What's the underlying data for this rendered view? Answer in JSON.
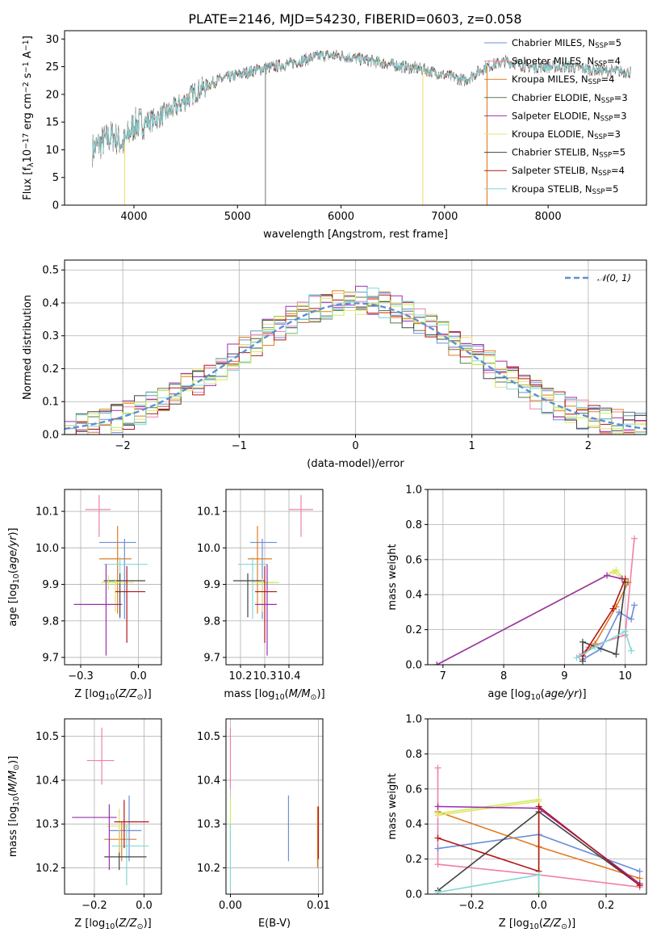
{
  "figure_title": "PLATE=2146, MJD=54230, FIBERID=0603, z=0.058",
  "colors": {
    "chabrier_miles": "#6a8fd8",
    "salpeter_miles": "#f080a8",
    "kroupa_miles": "#e07b20",
    "chabrier_elodie": "#5a7a50",
    "salpeter_elodie": "#9a30b0",
    "kroupa_elodie": "#e8e070",
    "chabrier_stelib": "#444444",
    "salpeter_stelib": "#b01818",
    "kroupa_stelib": "#80d8d8",
    "data": "#808080",
    "lime": "#c8f060"
  },
  "chart_data": [
    {
      "id": "spectrum",
      "type": "line",
      "xlabel": "wavelength [Angstrom, rest frame]",
      "ylabel": "Flux [f_λ10^-17 erg cm^-2 s^-1 A^-1]",
      "xlim": [
        3330,
        8950
      ],
      "ylim": [
        0,
        31.5
      ],
      "xticks": [
        4000,
        5000,
        6000,
        7000,
        8000
      ],
      "yticks": [
        0,
        5,
        10,
        15,
        20,
        25,
        30
      ],
      "grid": false,
      "legend_position": "right",
      "legend": [
        "Chabrier MILES, N_SSP=5",
        "Salpeter MILES, N_SSP=4",
        "Kroupa MILES, N_SSP=4",
        "Chabrier ELODIE, N_SSP=3",
        "Salpeter ELODIE, N_SSP=3",
        "Kroupa ELODIE, N_SSP=3",
        "Chabrier STELIB, N_SSP=5",
        "Salpeter STELIB, N_SSP=4",
        "Kroupa STELIB, N_SSP=5"
      ],
      "continuum": [
        [
          3600,
          10
        ],
        [
          3700,
          11.5
        ],
        [
          3800,
          12.5
        ],
        [
          3900,
          11
        ],
        [
          4000,
          14.5
        ],
        [
          4200,
          15.5
        ],
        [
          4400,
          17.5
        ],
        [
          4600,
          20.5
        ],
        [
          4800,
          22.5
        ],
        [
          5000,
          23.5
        ],
        [
          5200,
          24.5
        ],
        [
          5500,
          25.5
        ],
        [
          5800,
          27
        ],
        [
          6000,
          27
        ],
        [
          6300,
          26
        ],
        [
          6600,
          25
        ],
        [
          6800,
          24.5
        ],
        [
          7000,
          23.5
        ],
        [
          7200,
          22.5
        ],
        [
          7400,
          25
        ],
        [
          7600,
          26
        ],
        [
          7800,
          25
        ],
        [
          8000,
          25
        ],
        [
          8200,
          25
        ],
        [
          8400,
          24.5
        ],
        [
          8800,
          24
        ]
      ]
    },
    {
      "id": "residuals",
      "type": "histogram",
      "xlabel": "(data-model)/error",
      "ylabel": "Normed distribution",
      "xlim": [
        -2.5,
        2.5
      ],
      "ylim": [
        0,
        0.53
      ],
      "xticks": [
        -2,
        -1,
        0,
        1,
        2
      ],
      "yticks": [
        0.0,
        0.1,
        0.2,
        0.3,
        0.4,
        0.5
      ],
      "grid": true,
      "legend_position": "top-right",
      "legend": [
        "𝒩(0, 1)"
      ],
      "bin_width": 0.1
    },
    {
      "id": "age_vs_Z",
      "type": "errorbar",
      "xlabel": "Z [log10(Z/Z⊙)]",
      "ylabel": "age [log10(age/yr)]",
      "xlim": [
        -0.32,
        0.1
      ],
      "ylim": [
        9.68,
        10.16
      ],
      "xticks": [
        -0.25,
        0.0
      ],
      "yticks": [
        9.7,
        9.8,
        9.9,
        10.0,
        10.1
      ],
      "grid": true,
      "points": [
        {
          "c": "salpeter_miles",
          "x": -0.17,
          "y": 10.105,
          "xe": [
            0.06,
            0.05
          ],
          "ye": [
            0.075,
            0.04
          ]
        },
        {
          "c": "chabrier_miles",
          "x": -0.06,
          "y": 10.015,
          "xe": [
            0.11,
            0.05
          ],
          "ye": [
            0.21,
            0.01
          ]
        },
        {
          "c": "kroupa_miles",
          "x": -0.09,
          "y": 9.97,
          "xe": [
            0.08,
            0.06
          ],
          "ye": [
            0.15,
            0.09
          ]
        },
        {
          "c": "kroupa_stelib",
          "x": -0.08,
          "y": 9.955,
          "xe": [
            0.07,
            0.12
          ],
          "ye": [
            0.15,
            0.02
          ]
        },
        {
          "c": "chabrier_stelib",
          "x": -0.08,
          "y": 9.91,
          "xe": [
            0.07,
            0.11
          ],
          "ye": [
            0.1,
            0.02
          ]
        },
        {
          "c": "kroupa_elodie",
          "x": -0.1,
          "y": 9.905,
          "xe": [
            0.06,
            0.08
          ],
          "ye": [
            0.08,
            0.01
          ]
        },
        {
          "c": "lime",
          "x": -0.13,
          "y": 9.905,
          "xe": [
            0.03,
            0.05
          ],
          "ye": [
            0.02,
            0.02
          ]
        },
        {
          "c": "salpeter_stelib",
          "x": -0.05,
          "y": 9.88,
          "xe": [
            0.05,
            0.08
          ],
          "ye": [
            0.14,
            0.07
          ]
        },
        {
          "c": "salpeter_elodie",
          "x": -0.14,
          "y": 9.845,
          "xe": [
            0.14,
            0.07
          ],
          "ye": [
            0.14,
            0.11
          ]
        }
      ]
    },
    {
      "id": "age_vs_mass",
      "type": "errorbar",
      "xlabel": "mass [log10(M/M⊙)]",
      "ylabel": "",
      "xlim": [
        10.14,
        10.54
      ],
      "ylim": [
        9.68,
        10.16
      ],
      "xticks": [
        10.2,
        10.3,
        10.4
      ],
      "yticks": [
        9.7,
        9.8,
        9.9,
        10.0,
        10.1
      ],
      "grid": true,
      "points": [
        {
          "c": "salpeter_miles",
          "x": 10.45,
          "y": 10.105,
          "xe": [
            0.05,
            0.05
          ],
          "ye": [
            0.075,
            0.04
          ]
        },
        {
          "c": "chabrier_miles",
          "x": 10.29,
          "y": 10.015,
          "xe": [
            0.05,
            0.06
          ],
          "ye": [
            0.21,
            0.01
          ]
        },
        {
          "c": "kroupa_miles",
          "x": 10.27,
          "y": 9.97,
          "xe": [
            0.04,
            0.06
          ],
          "ye": [
            0.15,
            0.09
          ]
        },
        {
          "c": "kroupa_stelib",
          "x": 10.25,
          "y": 9.955,
          "xe": [
            0.06,
            0.06
          ],
          "ye": [
            0.15,
            0.02
          ]
        },
        {
          "c": "chabrier_stelib",
          "x": 10.23,
          "y": 9.91,
          "xe": [
            0.06,
            0.07
          ],
          "ye": [
            0.1,
            0.02
          ]
        },
        {
          "c": "kroupa_elodie",
          "x": 10.29,
          "y": 9.905,
          "xe": [
            0.04,
            0.06
          ],
          "ye": [
            0.08,
            0.01
          ]
        },
        {
          "c": "lime",
          "x": 10.31,
          "y": 9.905,
          "xe": [
            0.03,
            0.05
          ],
          "ye": [
            0.02,
            0.02
          ]
        },
        {
          "c": "salpeter_stelib",
          "x": 10.3,
          "y": 9.88,
          "xe": [
            0.04,
            0.05
          ],
          "ye": [
            0.14,
            0.07
          ]
        },
        {
          "c": "salpeter_elodie",
          "x": 10.31,
          "y": 9.845,
          "xe": [
            0.05,
            0.04
          ],
          "ye": [
            0.14,
            0.11
          ]
        }
      ]
    },
    {
      "id": "weight_vs_age",
      "type": "line",
      "xlabel": "age [log10(age/yr)]",
      "ylabel": "mass weight",
      "xlim": [
        6.75,
        10.35
      ],
      "ylim": [
        0,
        1.0
      ],
      "xticks": [
        7,
        8,
        9,
        10
      ],
      "yticks": [
        0.0,
        0.2,
        0.4,
        0.6,
        0.8,
        1.0
      ],
      "grid": true,
      "series": [
        {
          "c": "lime",
          "pts": [
            [
              6.9,
              0.0
            ],
            [
              9.85,
              0.54
            ],
            [
              10.0,
              0.48
            ]
          ]
        },
        {
          "c": "kroupa_elodie",
          "pts": [
            [
              6.9,
              0.0
            ],
            [
              9.8,
              0.53
            ],
            [
              10.05,
              0.47
            ]
          ]
        },
        {
          "c": "salpeter_elodie",
          "pts": [
            [
              6.9,
              0.0
            ],
            [
              9.7,
              0.51
            ],
            [
              9.95,
              0.49
            ]
          ]
        },
        {
          "c": "salpeter_miles",
          "pts": [
            [
              9.25,
              0.05
            ],
            [
              9.4,
              0.1
            ],
            [
              10.0,
              0.17
            ],
            [
              10.15,
              0.72
            ]
          ]
        },
        {
          "c": "chabrier_miles",
          "pts": [
            [
              9.3,
              0.03
            ],
            [
              9.6,
              0.09
            ],
            [
              9.9,
              0.3
            ],
            [
              10.1,
              0.26
            ],
            [
              10.15,
              0.34
            ]
          ]
        },
        {
          "c": "kroupa_miles",
          "pts": [
            [
              9.3,
              0.05
            ],
            [
              9.5,
              0.12
            ],
            [
              9.85,
              0.33
            ],
            [
              10.05,
              0.47
            ]
          ]
        },
        {
          "c": "chabrier_stelib",
          "pts": [
            [
              9.3,
              0.02
            ],
            [
              9.3,
              0.13
            ],
            [
              9.85,
              0.06
            ],
            [
              10.0,
              0.47
            ]
          ]
        },
        {
          "c": "salpeter_stelib",
          "pts": [
            [
              9.3,
              0.05
            ],
            [
              9.8,
              0.32
            ],
            [
              10.0,
              0.49
            ]
          ]
        },
        {
          "c": "kroupa_stelib",
          "pts": [
            [
              9.2,
              0.04
            ],
            [
              9.5,
              0.1
            ],
            [
              10.0,
              0.19
            ],
            [
              10.1,
              0.08
            ]
          ]
        }
      ]
    },
    {
      "id": "mass_vs_Z",
      "type": "errorbar",
      "xlabel": "Z [log10(Z/Z⊙)]",
      "ylabel": "mass [log10(M/M⊙)]",
      "xlim": [
        -0.32,
        0.07
      ],
      "ylim": [
        10.14,
        10.54
      ],
      "xticks": [
        -0.2,
        0.0
      ],
      "yticks": [
        10.2,
        10.3,
        10.4,
        10.5
      ],
      "grid": true,
      "points": [
        {
          "c": "salpeter_miles",
          "x": -0.17,
          "y": 10.445,
          "xe": [
            0.06,
            0.05
          ],
          "ye": [
            0.055,
            0.075
          ]
        },
        {
          "c": "chabrier_miles",
          "x": -0.06,
          "y": 10.285,
          "xe": [
            0.08,
            0.05
          ],
          "ye": [
            0.07,
            0.08
          ]
        },
        {
          "c": "kroupa_miles",
          "x": -0.09,
          "y": 10.265,
          "xe": [
            0.07,
            0.06
          ],
          "ye": [
            0.05,
            0.04
          ]
        },
        {
          "c": "kroupa_stelib",
          "x": -0.07,
          "y": 10.25,
          "xe": [
            0.06,
            0.09
          ],
          "ye": [
            0.09,
            0.05
          ]
        },
        {
          "c": "chabrier_stelib",
          "x": -0.1,
          "y": 10.225,
          "xe": [
            0.06,
            0.11
          ],
          "ye": [
            0.03,
            0.06
          ]
        },
        {
          "c": "kroupa_elodie",
          "x": -0.1,
          "y": 10.295,
          "xe": [
            0.05,
            0.04
          ],
          "ye": [
            0.06,
            0.04
          ]
        },
        {
          "c": "salpeter_stelib",
          "x": -0.08,
          "y": 10.305,
          "xe": [
            0.04,
            0.1
          ],
          "ye": [
            0.06,
            0.05
          ]
        },
        {
          "c": "salpeter_elodie",
          "x": -0.14,
          "y": 10.315,
          "xe": [
            0.15,
            0.03
          ],
          "ye": [
            0.12,
            0.03
          ]
        }
      ]
    },
    {
      "id": "mass_vs_ebv",
      "type": "errorbar",
      "xlabel": "E(B-V)",
      "ylabel": "",
      "xlim": [
        -0.0005,
        0.0105
      ],
      "ylim": [
        10.14,
        10.54
      ],
      "xticks": [
        0.0,
        0.01
      ],
      "xticklabels": [
        "0.00",
        "0.01"
      ],
      "yticks": [
        10.2,
        10.3,
        10.4,
        10.5
      ],
      "grid": true,
      "points": [
        {
          "c": "salpeter_miles",
          "x": 0.0,
          "y": 10.44,
          "xe": [
            0,
            0
          ],
          "ye": [
            0.06,
            0.08
          ]
        },
        {
          "c": "lime",
          "x": 0.0,
          "y": 10.3,
          "xe": [
            0,
            0
          ],
          "ye": [
            0.05,
            0.06
          ]
        },
        {
          "c": "kroupa_stelib",
          "x": 0.0,
          "y": 10.25,
          "xe": [
            0,
            0
          ],
          "ye": [
            0.1,
            0.05
          ]
        },
        {
          "c": "chabrier_miles",
          "x": 0.0066,
          "y": 10.285,
          "xe": [
            0,
            0
          ],
          "ye": [
            0.07,
            0.08
          ]
        },
        {
          "c": "kroupa_miles",
          "x": 0.0099,
          "y": 10.27,
          "xe": [
            0,
            0
          ],
          "ye": [
            0.07,
            0.07
          ]
        },
        {
          "c": "salpeter_stelib",
          "x": 0.01,
          "y": 10.28,
          "xe": [
            0,
            0
          ],
          "ye": [
            0.06,
            0.06
          ]
        }
      ]
    },
    {
      "id": "weight_vs_Z",
      "type": "line",
      "xlabel": "Z [log10(Z/Z⊙)]",
      "ylabel": "mass weight",
      "xlim": [
        -0.33,
        0.32
      ],
      "ylim": [
        0,
        1.0
      ],
      "xticks": [
        -0.2,
        0.0,
        0.2
      ],
      "yticks": [
        0.0,
        0.2,
        0.4,
        0.6,
        0.8,
        1.0
      ],
      "grid": true,
      "series": [
        {
          "c": "salpeter_miles",
          "pts": [
            [
              -0.3,
              0.72
            ],
            [
              -0.3,
              0.17
            ],
            [
              0.0,
              0.11
            ],
            [
              0.3,
              0.04
            ]
          ]
        },
        {
          "c": "chabrier_miles",
          "pts": [
            [
              -0.3,
              0.26
            ],
            [
              0.0,
              0.34
            ],
            [
              0.3,
              0.13
            ]
          ]
        },
        {
          "c": "kroupa_miles",
          "pts": [
            [
              -0.3,
              0.47
            ],
            [
              0.0,
              0.27
            ],
            [
              0.3,
              0.09
            ]
          ]
        },
        {
          "c": "lime",
          "pts": [
            [
              -0.3,
              0.46
            ],
            [
              0.0,
              0.54
            ],
            [
              0.0,
              0.0
            ]
          ]
        },
        {
          "c": "kroupa_elodie",
          "pts": [
            [
              -0.3,
              0.45
            ],
            [
              0.0,
              0.53
            ],
            [
              0.0,
              0.01
            ]
          ]
        },
        {
          "c": "salpeter_elodie",
          "pts": [
            [
              -0.3,
              0.5
            ],
            [
              0.0,
              0.49
            ],
            [
              0.3,
              0.06
            ]
          ]
        },
        {
          "c": "chabrier_stelib",
          "pts": [
            [
              -0.3,
              0.02
            ],
            [
              0.0,
              0.47
            ],
            [
              0.3,
              0.05
            ]
          ]
        },
        {
          "c": "salpeter_stelib",
          "pts": [
            [
              -0.3,
              0.32
            ],
            [
              0.0,
              0.13
            ],
            [
              0.0,
              0.5
            ],
            [
              0.3,
              0.05
            ]
          ]
        },
        {
          "c": "kroupa_stelib",
          "pts": [
            [
              -0.3,
              0.01
            ],
            [
              0.0,
              0.11
            ],
            [
              0.0,
              0.0
            ]
          ]
        }
      ]
    }
  ]
}
